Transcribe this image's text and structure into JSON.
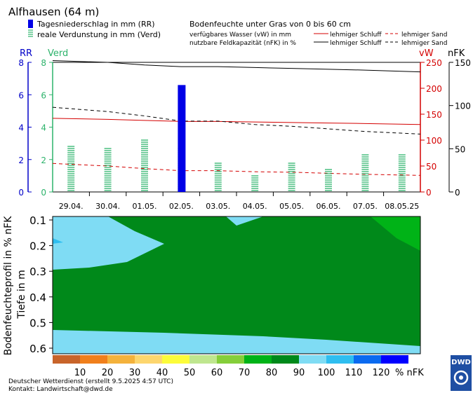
{
  "header": {
    "station": "Alfhausen (64 m)",
    "legend_rr": "Tagesniederschlag in mm (RR)",
    "legend_verd": "reale Verdunstung in mm (Verd)",
    "title_right": "Bodenfeuchte unter Gras von 0 bis 60 cm",
    "vw_line": "verfügbares Wasser (vW) in mm",
    "nfk_line": "nutzbare Feldkapazität (nFK) in %",
    "ls_label_1": "lehmiger Schluff",
    "sand_label_1": "lehmiger Sand",
    "ls_label_2": "lehmiger Schluff",
    "sand_label_2": "lehmiger Sand"
  },
  "axes": {
    "rr_title": "RR",
    "verd_title": "Verd",
    "vw_title": "vW",
    "nfk_title": "nFK",
    "left_ticks": [
      "0",
      "2",
      "4",
      "6",
      "8"
    ],
    "vw_ticks": [
      "0",
      "50",
      "100",
      "150",
      "200",
      "250"
    ],
    "nfk_ticks": [
      "0",
      "50",
      "100",
      "150"
    ],
    "depth_ticks": [
      "0.1",
      "0.2",
      "0.3",
      "0.4",
      "0.5",
      "0.6"
    ],
    "ylabel_profile": "Bodenfeuchteprofil in % nFK",
    "ylabel_depth": "Tiefe in m"
  },
  "colors": {
    "rr": "#0000e6",
    "verd": "#2db36b",
    "rr_axis": "#0000c8",
    "verd_axis": "#2db36b",
    "vw_axis": "#d40000",
    "nfk_axis": "#000000"
  },
  "chart_data": [
    {
      "type": "bar",
      "categories": [
        "29.04.",
        "30.04.",
        "01.05.",
        "02.05.",
        "03.05.",
        "04.05.",
        "05.05.",
        "06.05.",
        "07.05.",
        "08.05.25"
      ],
      "ylim": [
        0,
        8
      ],
      "series": [
        {
          "name": "Tagesniederschlag in mm (RR)",
          "axis": "left",
          "values": [
            0,
            0,
            0,
            6.6,
            0,
            0,
            0,
            0,
            0,
            0
          ]
        },
        {
          "name": "reale Verdunstung in mm (Verd)",
          "axis": "left",
          "values": [
            2.9,
            2.8,
            3.3,
            2.8,
            1.9,
            1.0,
            1.8,
            1.5,
            2.4,
            2.3
          ]
        }
      ]
    },
    {
      "type": "line",
      "x": [
        "29.04.",
        "30.04.",
        "01.05.",
        "02.05.",
        "03.05.",
        "04.05.",
        "05.05.",
        "06.05.",
        "07.05.",
        "08.05.25"
      ],
      "ylim_vw": [
        0,
        250
      ],
      "ylim_nfk": [
        0,
        150
      ],
      "series": [
        {
          "name": "nFK lehmiger Schluff",
          "axis": "nfk",
          "style": "solid",
          "color": "#000000",
          "values": [
            152,
            150,
            147,
            145,
            145,
            144,
            143,
            142,
            141,
            139
          ]
        },
        {
          "name": "vW lehmiger Schluff",
          "axis": "vw",
          "style": "solid",
          "color": "#d40000",
          "values": [
            142,
            140,
            138,
            136,
            136,
            135,
            134,
            133,
            132,
            130
          ]
        },
        {
          "name": "nFK lehmiger Sand",
          "axis": "nfk",
          "style": "dashed",
          "color": "#000000",
          "values": [
            98,
            93,
            88,
            82,
            82,
            78,
            76,
            73,
            70,
            67
          ]
        },
        {
          "name": "vW lehmiger Sand",
          "axis": "vw",
          "style": "dashed",
          "color": "#d40000",
          "values": [
            55,
            50,
            45,
            41,
            41,
            39,
            38,
            36,
            34,
            32
          ]
        }
      ]
    },
    {
      "type": "heatmap",
      "x": [
        "29.04.",
        "30.04.",
        "01.05.",
        "02.05.",
        "03.05.",
        "04.05.",
        "05.05.",
        "06.05.",
        "07.05.",
        "08.05.25"
      ],
      "ylim": [
        0.1,
        0.6
      ],
      "ylabel": "Tiefe in m",
      "zones": [
        {
          "nfk_class": "90-100",
          "color": "#7fdcf4"
        },
        {
          "nfk_class": "100-110",
          "color": "#2fbef0"
        },
        {
          "nfk_class": "80-90",
          "color": "#00891a"
        },
        {
          "nfk_class": "70-80",
          "color": "#00b317"
        }
      ]
    }
  ],
  "scale": {
    "labels": [
      "10",
      "20",
      "30",
      "40",
      "50",
      "60",
      "70",
      "80",
      "90",
      "100",
      "110",
      "120"
    ],
    "unit": "% nFK",
    "colors": [
      "#c8642a",
      "#f07f1c",
      "#f4b23c",
      "#fdd66e",
      "#fcfc3a",
      "#bfe68f",
      "#85ce3a",
      "#00b317",
      "#00891a",
      "#7fdcf4",
      "#2fbef0",
      "#0a6af0",
      "#0000ff"
    ]
  },
  "footer": {
    "line1": "Deutscher Wetterdienst (erstellt 9.5.2025 4:57 UTC)",
    "line2": "Kontakt: Landwirtschaft@dwd.de",
    "logo": "DWD"
  }
}
